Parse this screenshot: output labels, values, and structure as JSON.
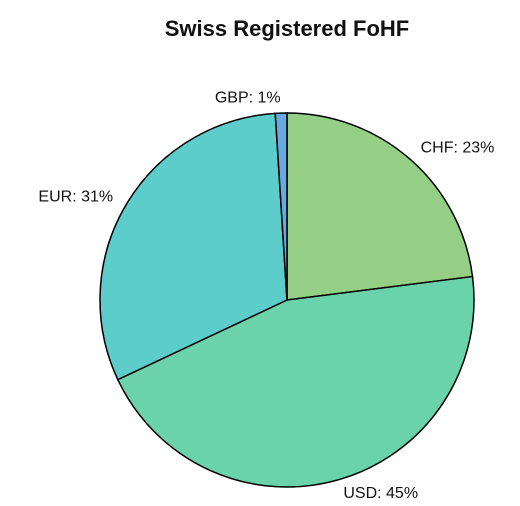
{
  "chart_data": {
    "type": "pie",
    "title": "Swiss Registered FoHF",
    "values": [
      23,
      45,
      31,
      1
    ],
    "value_labels": [
      "CHF: 23%",
      "USD: 45%",
      "EUR: 31%",
      "GBP: 1%"
    ],
    "colors": [
      "#95cf86",
      "#6ad3ab",
      "#5ccdca",
      "#6aa8e0"
    ]
  }
}
